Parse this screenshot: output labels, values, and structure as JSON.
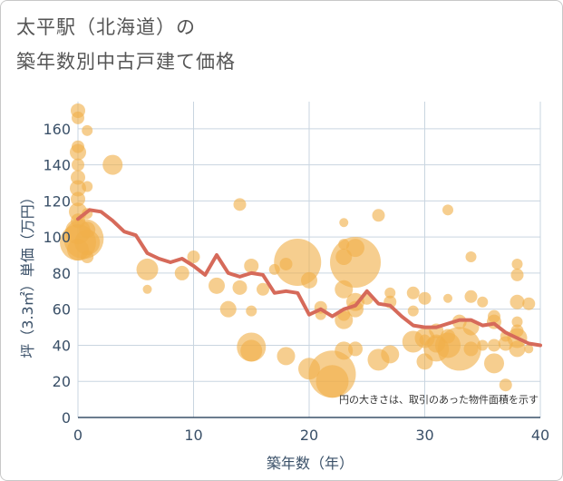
{
  "chart_data": {
    "type": "scatter",
    "title_line1": "太平駅（北海道）の",
    "title_line2": "築年数別中古戸建て価格",
    "xlabel": "築年数（年）",
    "ylabel": "坪（3.3㎡）単価（万円）",
    "xlim": [
      0,
      40
    ],
    "ylim": [
      0,
      175
    ],
    "x_ticks": [
      "0",
      "10",
      "20",
      "30",
      "40"
    ],
    "y_ticks": [
      "0",
      "20",
      "40",
      "60",
      "80",
      "100",
      "120",
      "140",
      "160"
    ],
    "grid": true,
    "note": "円の大きさは、取引のあった物件面積を示す",
    "colors": {
      "bubble": "#f0b04a",
      "line": "#d66a5a",
      "grid": "#c9d5e0",
      "axis": "#3a5068"
    },
    "bubbles": [
      {
        "x": 0,
        "y": 170,
        "s": 8
      },
      {
        "x": 0,
        "y": 166,
        "s": 7
      },
      {
        "x": 0,
        "y": 150,
        "s": 7
      },
      {
        "x": 0,
        "y": 147,
        "s": 9
      },
      {
        "x": 0,
        "y": 140,
        "s": 7
      },
      {
        "x": 0,
        "y": 133,
        "s": 8
      },
      {
        "x": 0,
        "y": 127,
        "s": 9
      },
      {
        "x": 0,
        "y": 121,
        "s": 8
      },
      {
        "x": 0,
        "y": 114,
        "s": 10
      },
      {
        "x": 0,
        "y": 109,
        "s": 8
      },
      {
        "x": 0,
        "y": 103,
        "s": 14
      },
      {
        "x": 0,
        "y": 97,
        "s": 20
      },
      {
        "x": 0,
        "y": 93,
        "s": 12
      },
      {
        "x": 0.5,
        "y": 99,
        "s": 22
      },
      {
        "x": 0.8,
        "y": 97,
        "s": 14
      },
      {
        "x": 0.8,
        "y": 159,
        "s": 6
      },
      {
        "x": 0.8,
        "y": 128,
        "s": 6
      },
      {
        "x": 0.8,
        "y": 113,
        "s": 6
      },
      {
        "x": 0.8,
        "y": 104,
        "s": 9
      },
      {
        "x": 0.8,
        "y": 89,
        "s": 7
      },
      {
        "x": 3,
        "y": 140,
        "s": 11
      },
      {
        "x": 6,
        "y": 82,
        "s": 12
      },
      {
        "x": 6,
        "y": 71,
        "s": 5
      },
      {
        "x": 9,
        "y": 80,
        "s": 8
      },
      {
        "x": 10,
        "y": 89,
        "s": 7
      },
      {
        "x": 14,
        "y": 118,
        "s": 7
      },
      {
        "x": 12,
        "y": 73,
        "s": 9
      },
      {
        "x": 13,
        "y": 60,
        "s": 9
      },
      {
        "x": 14,
        "y": 72,
        "s": 8
      },
      {
        "x": 15,
        "y": 84,
        "s": 8
      },
      {
        "x": 15,
        "y": 59,
        "s": 6
      },
      {
        "x": 15,
        "y": 39,
        "s": 16
      },
      {
        "x": 15,
        "y": 37,
        "s": 12
      },
      {
        "x": 16,
        "y": 71,
        "s": 7
      },
      {
        "x": 17,
        "y": 82,
        "s": 6
      },
      {
        "x": 18,
        "y": 85,
        "s": 7
      },
      {
        "x": 18,
        "y": 34,
        "s": 10
      },
      {
        "x": 19,
        "y": 86,
        "s": 26
      },
      {
        "x": 20,
        "y": 76,
        "s": 9
      },
      {
        "x": 20,
        "y": 27,
        "s": 12
      },
      {
        "x": 21,
        "y": 61,
        "s": 7
      },
      {
        "x": 21,
        "y": 57,
        "s": 6
      },
      {
        "x": 22,
        "y": 24,
        "s": 26
      },
      {
        "x": 22,
        "y": 20,
        "s": 18
      },
      {
        "x": 23,
        "y": 108,
        "s": 5
      },
      {
        "x": 23,
        "y": 96,
        "s": 6
      },
      {
        "x": 23,
        "y": 89,
        "s": 9
      },
      {
        "x": 23,
        "y": 71,
        "s": 10
      },
      {
        "x": 23,
        "y": 57,
        "s": 7
      },
      {
        "x": 23,
        "y": 54,
        "s": 10
      },
      {
        "x": 23,
        "y": 37,
        "s": 10
      },
      {
        "x": 24,
        "y": 94,
        "s": 10
      },
      {
        "x": 24,
        "y": 86,
        "s": 28
      },
      {
        "x": 24,
        "y": 64,
        "s": 10
      },
      {
        "x": 24,
        "y": 60,
        "s": 9
      },
      {
        "x": 24,
        "y": 38,
        "s": 8
      },
      {
        "x": 25,
        "y": 66,
        "s": 7
      },
      {
        "x": 26,
        "y": 112,
        "s": 7
      },
      {
        "x": 26,
        "y": 32,
        "s": 12
      },
      {
        "x": 27,
        "y": 69,
        "s": 6
      },
      {
        "x": 27,
        "y": 64,
        "s": 7
      },
      {
        "x": 27,
        "y": 35,
        "s": 10
      },
      {
        "x": 29,
        "y": 69,
        "s": 7
      },
      {
        "x": 29,
        "y": 59,
        "s": 6
      },
      {
        "x": 29,
        "y": 42,
        "s": 12
      },
      {
        "x": 30,
        "y": 66,
        "s": 7
      },
      {
        "x": 30,
        "y": 44,
        "s": 11
      },
      {
        "x": 30,
        "y": 31,
        "s": 9
      },
      {
        "x": 30,
        "y": 43,
        "s": 6
      },
      {
        "x": 31,
        "y": 48,
        "s": 8
      },
      {
        "x": 31,
        "y": 41,
        "s": 10
      },
      {
        "x": 31,
        "y": 38,
        "s": 14
      },
      {
        "x": 32,
        "y": 115,
        "s": 6
      },
      {
        "x": 32,
        "y": 66,
        "s": 5
      },
      {
        "x": 32,
        "y": 45,
        "s": 8
      },
      {
        "x": 32,
        "y": 40,
        "s": 14
      },
      {
        "x": 33,
        "y": 53,
        "s": 8
      },
      {
        "x": 33,
        "y": 38,
        "s": 24
      },
      {
        "x": 34,
        "y": 89,
        "s": 6
      },
      {
        "x": 34,
        "y": 67,
        "s": 7
      },
      {
        "x": 34,
        "y": 50,
        "s": 9
      },
      {
        "x": 34,
        "y": 38,
        "s": 8
      },
      {
        "x": 35,
        "y": 64,
        "s": 6
      },
      {
        "x": 35,
        "y": 40,
        "s": 6
      },
      {
        "x": 36,
        "y": 56,
        "s": 7
      },
      {
        "x": 36,
        "y": 53,
        "s": 8
      },
      {
        "x": 36,
        "y": 40,
        "s": 7
      },
      {
        "x": 36,
        "y": 30,
        "s": 11
      },
      {
        "x": 37,
        "y": 45,
        "s": 6
      },
      {
        "x": 37,
        "y": 41,
        "s": 8
      },
      {
        "x": 37,
        "y": 18,
        "s": 7
      },
      {
        "x": 38,
        "y": 85,
        "s": 6
      },
      {
        "x": 38,
        "y": 79,
        "s": 7
      },
      {
        "x": 38,
        "y": 64,
        "s": 8
      },
      {
        "x": 38,
        "y": 53,
        "s": 6
      },
      {
        "x": 38,
        "y": 48,
        "s": 7
      },
      {
        "x": 38,
        "y": 44,
        "s": 11
      },
      {
        "x": 38,
        "y": 38,
        "s": 9
      },
      {
        "x": 39,
        "y": 63,
        "s": 7
      },
      {
        "x": 39,
        "y": 38,
        "s": 5
      }
    ],
    "trend": {
      "x": [
        0,
        1,
        2,
        3,
        4,
        5,
        6,
        7,
        8,
        9,
        10,
        11,
        12,
        13,
        14,
        15,
        16,
        17,
        18,
        19,
        20,
        21,
        22,
        23,
        24,
        25,
        26,
        27,
        28,
        29,
        30,
        31,
        32,
        33,
        34,
        35,
        36,
        37,
        38,
        39,
        40
      ],
      "y": [
        110,
        115,
        114,
        109,
        103,
        101,
        91,
        88,
        86,
        88,
        84,
        79,
        90,
        80,
        78,
        80,
        79,
        69,
        70,
        69,
        57,
        60,
        56,
        60,
        62,
        70,
        63,
        62,
        56,
        51,
        50,
        50,
        52,
        54,
        54,
        51,
        52,
        47,
        44,
        41,
        40
      ]
    }
  }
}
